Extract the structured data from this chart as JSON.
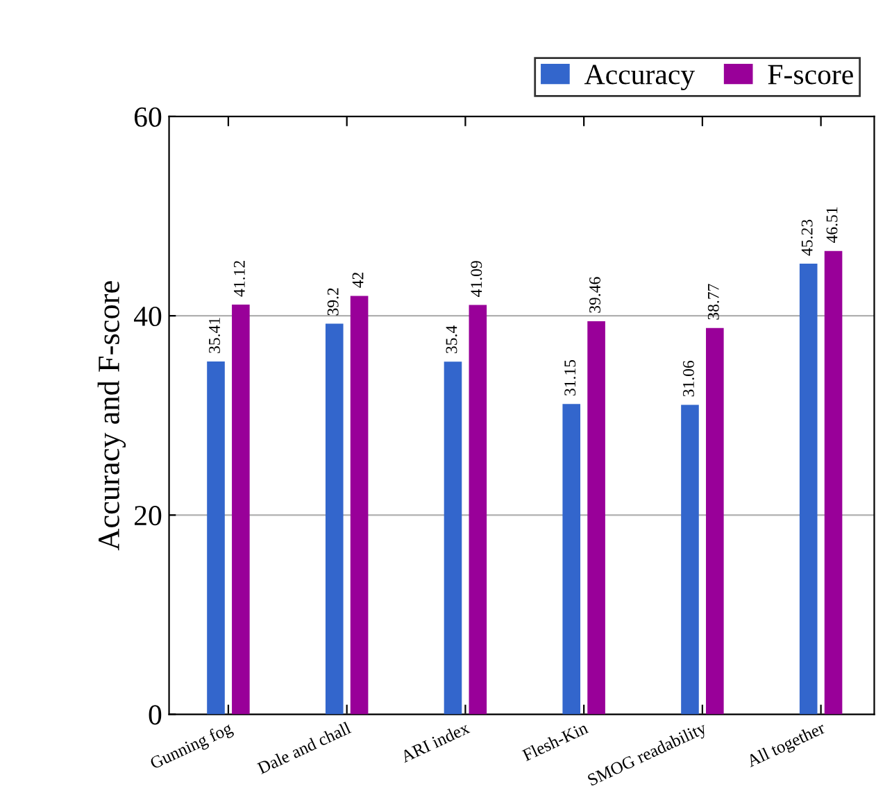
{
  "chart_data": {
    "type": "bar",
    "ylabel": "Accuracy and F-score",
    "categories": [
      "Gunning fog",
      "Dale and chall",
      "ARI index",
      "Flesh-Kin",
      "SMOG readability",
      "All together"
    ],
    "series": [
      {
        "name": "Accuracy",
        "color": "#3366cc",
        "values": [
          35.41,
          39.2,
          35.4,
          31.15,
          31.06,
          45.23
        ]
      },
      {
        "name": "F-score",
        "color": "#990099",
        "values": [
          41.12,
          42,
          41.09,
          39.46,
          38.77,
          46.51
        ]
      }
    ],
    "ylim": [
      0,
      60
    ],
    "yticks": [
      0,
      20,
      40,
      60
    ],
    "grid": "y",
    "legend": "top right",
    "data_labels": true
  }
}
